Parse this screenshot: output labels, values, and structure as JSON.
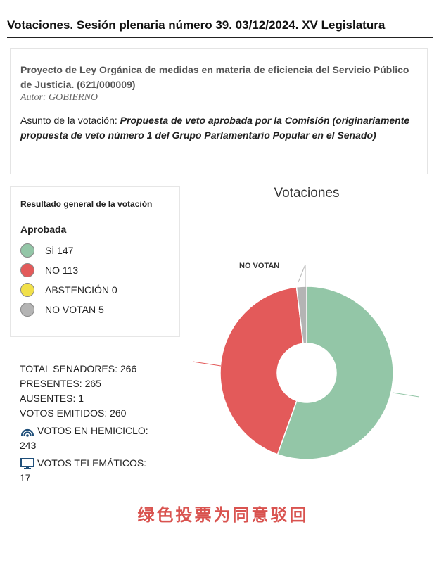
{
  "header": {
    "title": "Votaciones. Sesión plenaria número 39. 03/12/2024. XV  Legislatura"
  },
  "bill": {
    "title": "Proyecto de Ley Orgánica de medidas en materia de eficiencia del Servicio Público de Justicia. (621/000009)",
    "author": "Autor: GOBIERNO",
    "subject_label": "Asunto de la votación: ",
    "subject_text": "Propuesta de veto aprobada por la Comisión (originariamente propuesta de veto número 1 del Grupo Parlamentario Popular en el Senado)"
  },
  "result": {
    "title": "Resultado general de la votación",
    "outcome": "Aprobada",
    "legend": [
      {
        "label": "SÍ 147",
        "color": "#93c6a7"
      },
      {
        "label": "NO 113",
        "color": "#e35a5a"
      },
      {
        "label": "ABSTENCIÓN 0",
        "color": "#f1e04a"
      },
      {
        "label": "NO VOTAN 5",
        "color": "#b4b4b4"
      }
    ]
  },
  "totals": {
    "total_senators": "TOTAL SENADORES: 266",
    "present": "PRESENTES: 265",
    "absent": "AUSENTES: 1",
    "votes_cast": "VOTOS EMITIDOS: 260",
    "chamber_label": "VOTOS EN HEMICICLO:",
    "chamber_value": "243",
    "telematic_label": "VOTOS TELEMÁTICOS:",
    "telematic_value": "17",
    "icons": [
      "wifi-signal-icon",
      "monitor-icon"
    ]
  },
  "chart_data": {
    "type": "pie",
    "title": "Votaciones",
    "categories": [
      "SÍ",
      "NO",
      "ABSTENCIÓN",
      "NO VOTAN"
    ],
    "values": [
      147,
      113,
      0,
      5
    ],
    "colors": [
      "#93c6a7",
      "#e35a5a",
      "#f1e04a",
      "#b4b4b4"
    ],
    "data_labels": [
      "NO VOTAN"
    ],
    "donut": true
  },
  "footnote": "绿色投票为同意驳回"
}
